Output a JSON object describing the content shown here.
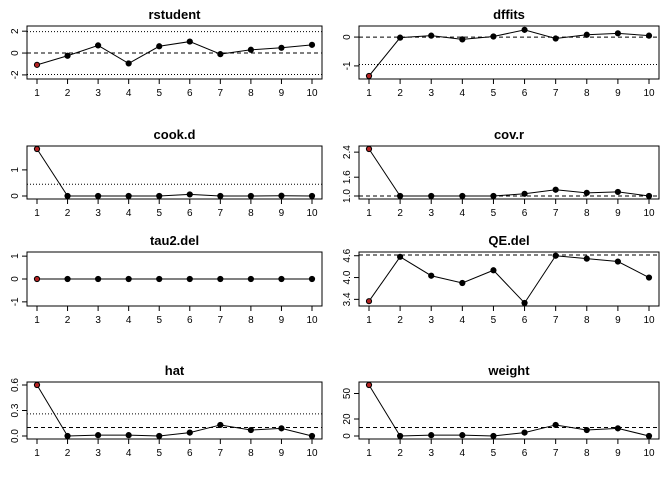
{
  "chart_data": [
    {
      "type": "line",
      "title": "rstudent",
      "x": [
        1,
        2,
        3,
        4,
        5,
        6,
        7,
        8,
        9,
        10
      ],
      "values": [
        -1.08,
        -0.25,
        0.7,
        -0.95,
        0.62,
        1.05,
        -0.1,
        0.3,
        0.48,
        0.75
      ],
      "ylim": [
        -2.1,
        2.2
      ],
      "yticks": [
        -2,
        0,
        2
      ],
      "flagged": [
        1
      ],
      "hlines": [
        {
          "y": 0,
          "style": "dashed"
        },
        {
          "y": 1.96,
          "style": "dotted"
        },
        {
          "y": -1.96,
          "style": "dotted"
        }
      ]
    },
    {
      "type": "line",
      "title": "dffits",
      "x": [
        1,
        2,
        3,
        4,
        5,
        6,
        7,
        8,
        9,
        10
      ],
      "values": [
        -1.35,
        -0.02,
        0.05,
        -0.08,
        0.02,
        0.25,
        -0.05,
        0.08,
        0.13,
        0.05
      ],
      "ylim": [
        -1.35,
        0.28
      ],
      "yticks": [
        -1.0,
        0.0
      ],
      "flagged": [
        1
      ],
      "hlines": [
        {
          "y": 0,
          "style": "dashed"
        },
        {
          "y": -0.95,
          "style": "dotted"
        }
      ]
    },
    {
      "type": "line",
      "title": "cook.d",
      "x": [
        1,
        2,
        3,
        4,
        5,
        6,
        7,
        8,
        9,
        10
      ],
      "values": [
        1.8,
        0.0,
        0.0,
        0.0,
        0.0,
        0.06,
        0.0,
        0.0,
        0.01,
        0.0
      ],
      "ylim": [
        0,
        1.8
      ],
      "yticks": [
        0.0,
        1.0
      ],
      "flagged": [
        1
      ],
      "hlines": [
        {
          "y": 0.45,
          "style": "dotted"
        }
      ]
    },
    {
      "type": "line",
      "title": "cov.r",
      "x": [
        1,
        2,
        3,
        4,
        5,
        6,
        7,
        8,
        9,
        10
      ],
      "values": [
        2.5,
        1.0,
        1.0,
        1.0,
        1.0,
        1.07,
        1.2,
        1.1,
        1.13,
        1.0
      ],
      "ylim": [
        1.0,
        2.5
      ],
      "yticks": [
        1.0,
        1.6,
        2.4
      ],
      "flagged": [
        1
      ],
      "hlines": [
        {
          "y": 1.0,
          "style": "dashed"
        }
      ]
    },
    {
      "type": "line",
      "title": "tau2.del",
      "x": [
        1,
        2,
        3,
        4,
        5,
        6,
        7,
        8,
        9,
        10
      ],
      "values": [
        0,
        0,
        0,
        0,
        0,
        0,
        0,
        0,
        0,
        0
      ],
      "ylim": [
        -1.05,
        1.05
      ],
      "yticks": [
        -1.0,
        0.0,
        1.0
      ],
      "flagged": [
        1
      ],
      "hlines": []
    },
    {
      "type": "line",
      "title": "QE.del",
      "x": [
        1,
        2,
        3,
        4,
        5,
        6,
        7,
        8,
        9,
        10
      ],
      "values": [
        3.35,
        4.57,
        4.05,
        3.85,
        4.2,
        3.3,
        4.6,
        4.52,
        4.44,
        4.0
      ],
      "ylim": [
        3.3,
        4.62
      ],
      "yticks": [
        3.4,
        4.0,
        4.6
      ],
      "flagged": [
        1
      ],
      "hlines": [
        {
          "y": 4.62,
          "style": "dashed"
        }
      ]
    },
    {
      "type": "line",
      "title": "hat",
      "x": [
        1,
        2,
        3,
        4,
        5,
        6,
        7,
        8,
        9,
        10
      ],
      "values": [
        0.6,
        0.0,
        0.01,
        0.01,
        0.0,
        0.04,
        0.13,
        0.07,
        0.09,
        0.0
      ],
      "ylim": [
        0,
        0.6
      ],
      "yticks": [
        0.0,
        0.3,
        0.6
      ],
      "flagged": [
        1
      ],
      "hlines": [
        {
          "y": 0.1,
          "style": "dashed"
        },
        {
          "y": 0.26,
          "style": "dotted"
        }
      ]
    },
    {
      "type": "line",
      "title": "weight",
      "x": [
        1,
        2,
        3,
        4,
        5,
        6,
        7,
        8,
        9,
        10
      ],
      "values": [
        60,
        0,
        1,
        1,
        0,
        4,
        13,
        7,
        9,
        0
      ],
      "ylim": [
        0,
        60
      ],
      "yticks": [
        0,
        20,
        50
      ],
      "flagged": [
        1
      ],
      "hlines": [
        {
          "y": 10,
          "style": "dashed"
        }
      ]
    }
  ],
  "x_tick_labels": [
    "1",
    "2",
    "3",
    "4",
    "5",
    "6",
    "7",
    "8",
    "9",
    "10"
  ],
  "colors": {
    "point": "#000000",
    "flagged_point": "#b22222",
    "line": "#000000",
    "axis": "#000000"
  }
}
